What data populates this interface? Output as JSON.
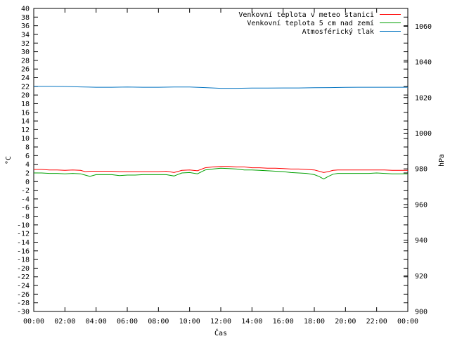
{
  "chart_data": {
    "type": "line",
    "xlabel": "Čas",
    "ylabel": "°C",
    "y2label": "hPa",
    "grid": false,
    "legend_placement": "top-right",
    "ylim": [
      -30,
      40
    ],
    "y2lim": [
      900,
      1070
    ],
    "xlim": [
      0,
      24
    ],
    "x_tick_labels": [
      "00:00",
      "02:00",
      "04:00",
      "06:00",
      "08:00",
      "10:00",
      "12:00",
      "14:00",
      "16:00",
      "18:00",
      "20:00",
      "22:00",
      "00:00"
    ],
    "y_ticks": [
      -30,
      -28,
      -26,
      -24,
      -22,
      -20,
      -18,
      -16,
      -14,
      -12,
      -10,
      -8,
      -6,
      -4,
      -2,
      0,
      2,
      4,
      6,
      8,
      10,
      12,
      14,
      16,
      18,
      20,
      22,
      24,
      26,
      28,
      30,
      32,
      34,
      36,
      38,
      40
    ],
    "y2_ticks": [
      900,
      920,
      940,
      960,
      980,
      1000,
      1020,
      1040,
      1060
    ],
    "series": [
      {
        "name": "Venkovní teplota v meteo stanici",
        "color": "#ff0000",
        "axis": "left",
        "x": [
          0,
          0.5,
          1,
          1.5,
          2,
          2.5,
          3,
          3.3,
          3.6,
          4,
          4.5,
          5,
          5.5,
          6,
          6.5,
          7,
          7.5,
          8,
          8.5,
          9,
          9.5,
          10,
          10.5,
          11,
          11.5,
          12,
          12.5,
          13,
          13.5,
          14,
          14.5,
          15,
          15.5,
          16,
          16.5,
          17,
          17.5,
          18,
          18.3,
          18.6,
          18.9,
          19.2,
          19.5,
          20,
          20.5,
          21,
          21.5,
          22,
          22.5,
          23,
          23.5,
          24
        ],
        "values": [
          2.8,
          2.8,
          2.7,
          2.7,
          2.6,
          2.7,
          2.6,
          2.3,
          2.4,
          2.4,
          2.4,
          2.4,
          2.3,
          2.3,
          2.3,
          2.3,
          2.3,
          2.3,
          2.4,
          2.1,
          2.6,
          2.7,
          2.5,
          3.2,
          3.4,
          3.5,
          3.5,
          3.4,
          3.4,
          3.2,
          3.2,
          3.1,
          3.1,
          3.0,
          2.9,
          2.9,
          2.8,
          2.7,
          2.4,
          2.1,
          2.3,
          2.6,
          2.7,
          2.7,
          2.7,
          2.7,
          2.7,
          2.7,
          2.7,
          2.6,
          2.6,
          2.6
        ]
      },
      {
        "name": "Venkovní teplota 5 cm nad zemí",
        "color": "#00a000",
        "axis": "left",
        "x": [
          0,
          0.5,
          1,
          1.5,
          2,
          2.5,
          3,
          3.3,
          3.6,
          4,
          4.5,
          5,
          5.5,
          6,
          6.5,
          7,
          7.5,
          8,
          8.5,
          9,
          9.5,
          10,
          10.5,
          11,
          11.5,
          12,
          12.5,
          13,
          13.5,
          14,
          14.5,
          15,
          15.5,
          16,
          16.5,
          17,
          17.5,
          18,
          18.3,
          18.6,
          18.9,
          19.2,
          19.5,
          20,
          20.5,
          21,
          21.5,
          22,
          22.5,
          23,
          23.5,
          24
        ],
        "values": [
          2.0,
          2.0,
          1.9,
          1.9,
          1.8,
          1.9,
          1.8,
          1.5,
          1.2,
          1.6,
          1.6,
          1.6,
          1.4,
          1.5,
          1.5,
          1.6,
          1.6,
          1.6,
          1.6,
          1.3,
          2.0,
          2.1,
          1.8,
          2.7,
          2.9,
          3.1,
          3.0,
          2.9,
          2.7,
          2.7,
          2.6,
          2.5,
          2.4,
          2.3,
          2.1,
          2.0,
          1.9,
          1.6,
          1.2,
          0.6,
          1.2,
          1.7,
          1.9,
          1.9,
          1.9,
          1.9,
          1.9,
          2.0,
          1.9,
          1.8,
          1.8,
          1.8
        ]
      },
      {
        "name": "Atmosférický tlak",
        "color": "#0072c0",
        "axis": "right",
        "x": [
          0,
          1,
          2,
          3,
          4,
          5,
          6,
          7,
          8,
          9,
          10,
          11,
          12,
          13,
          14,
          15,
          16,
          17,
          18,
          19,
          20,
          21,
          22,
          23,
          24
        ],
        "values": [
          1026.3,
          1026.3,
          1026.2,
          1026.0,
          1025.8,
          1025.8,
          1025.9,
          1025.8,
          1025.8,
          1025.9,
          1025.9,
          1025.6,
          1025.2,
          1025.2,
          1025.3,
          1025.3,
          1025.4,
          1025.4,
          1025.5,
          1025.6,
          1025.7,
          1025.8,
          1025.8,
          1025.8,
          1025.8
        ]
      }
    ]
  }
}
